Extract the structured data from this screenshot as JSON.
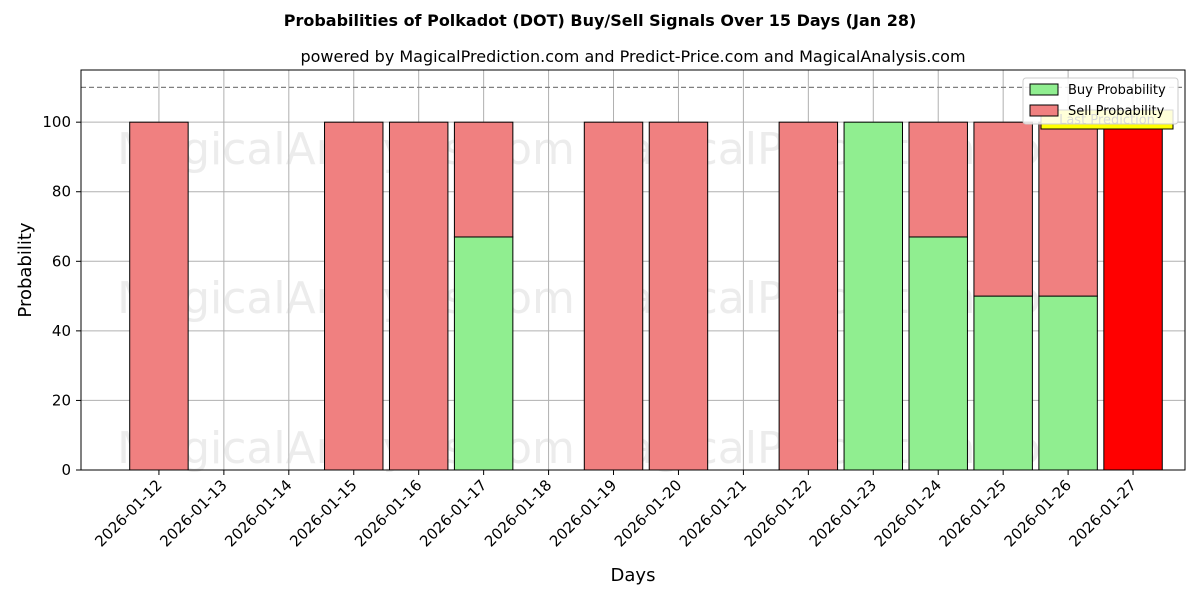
{
  "chart_data": {
    "type": "bar",
    "title": "Probabilities of Polkadot (DOT) Buy/Sell Signals Over 15 Days (Jan 28)",
    "subtitle": "powered by MagicalPrediction.com and Predict-Price.com and MagicalAnalysis.com",
    "xlabel": "Days",
    "ylabel": "Probability",
    "ylim": [
      0,
      115
    ],
    "yticks": [
      0,
      20,
      40,
      60,
      80,
      100
    ],
    "grid": true,
    "reference_line": 110,
    "categories": [
      "2026-01-12",
      "2026-01-13",
      "2026-01-14",
      "2026-01-15",
      "2026-01-16",
      "2026-01-17",
      "2026-01-18",
      "2026-01-19",
      "2026-01-20",
      "2026-01-21",
      "2026-01-22",
      "2026-01-23",
      "2026-01-24",
      "2026-01-25",
      "2026-01-26",
      "2026-01-27"
    ],
    "series": [
      {
        "name": "Buy Probability",
        "color": "#90ee90",
        "values": [
          0,
          null,
          null,
          0,
          0,
          67,
          null,
          0,
          0,
          null,
          0,
          100,
          67,
          50,
          50,
          0
        ]
      },
      {
        "name": "Sell Probability",
        "color": "#f08080",
        "values": [
          100,
          null,
          null,
          100,
          100,
          33,
          null,
          100,
          100,
          null,
          100,
          0,
          33,
          50,
          50,
          100
        ]
      }
    ],
    "highlight": {
      "category": "2026-01-27",
      "value": 100,
      "color": "#ff0000",
      "label": "Last Prediction",
      "label_color": "#ffff00"
    },
    "legend": {
      "position": "top-right",
      "entries": [
        "Buy Probability",
        "Sell Probability"
      ]
    },
    "watermarks": [
      "MagicalAnalysis.com",
      "MagicalPrediction.com"
    ]
  }
}
